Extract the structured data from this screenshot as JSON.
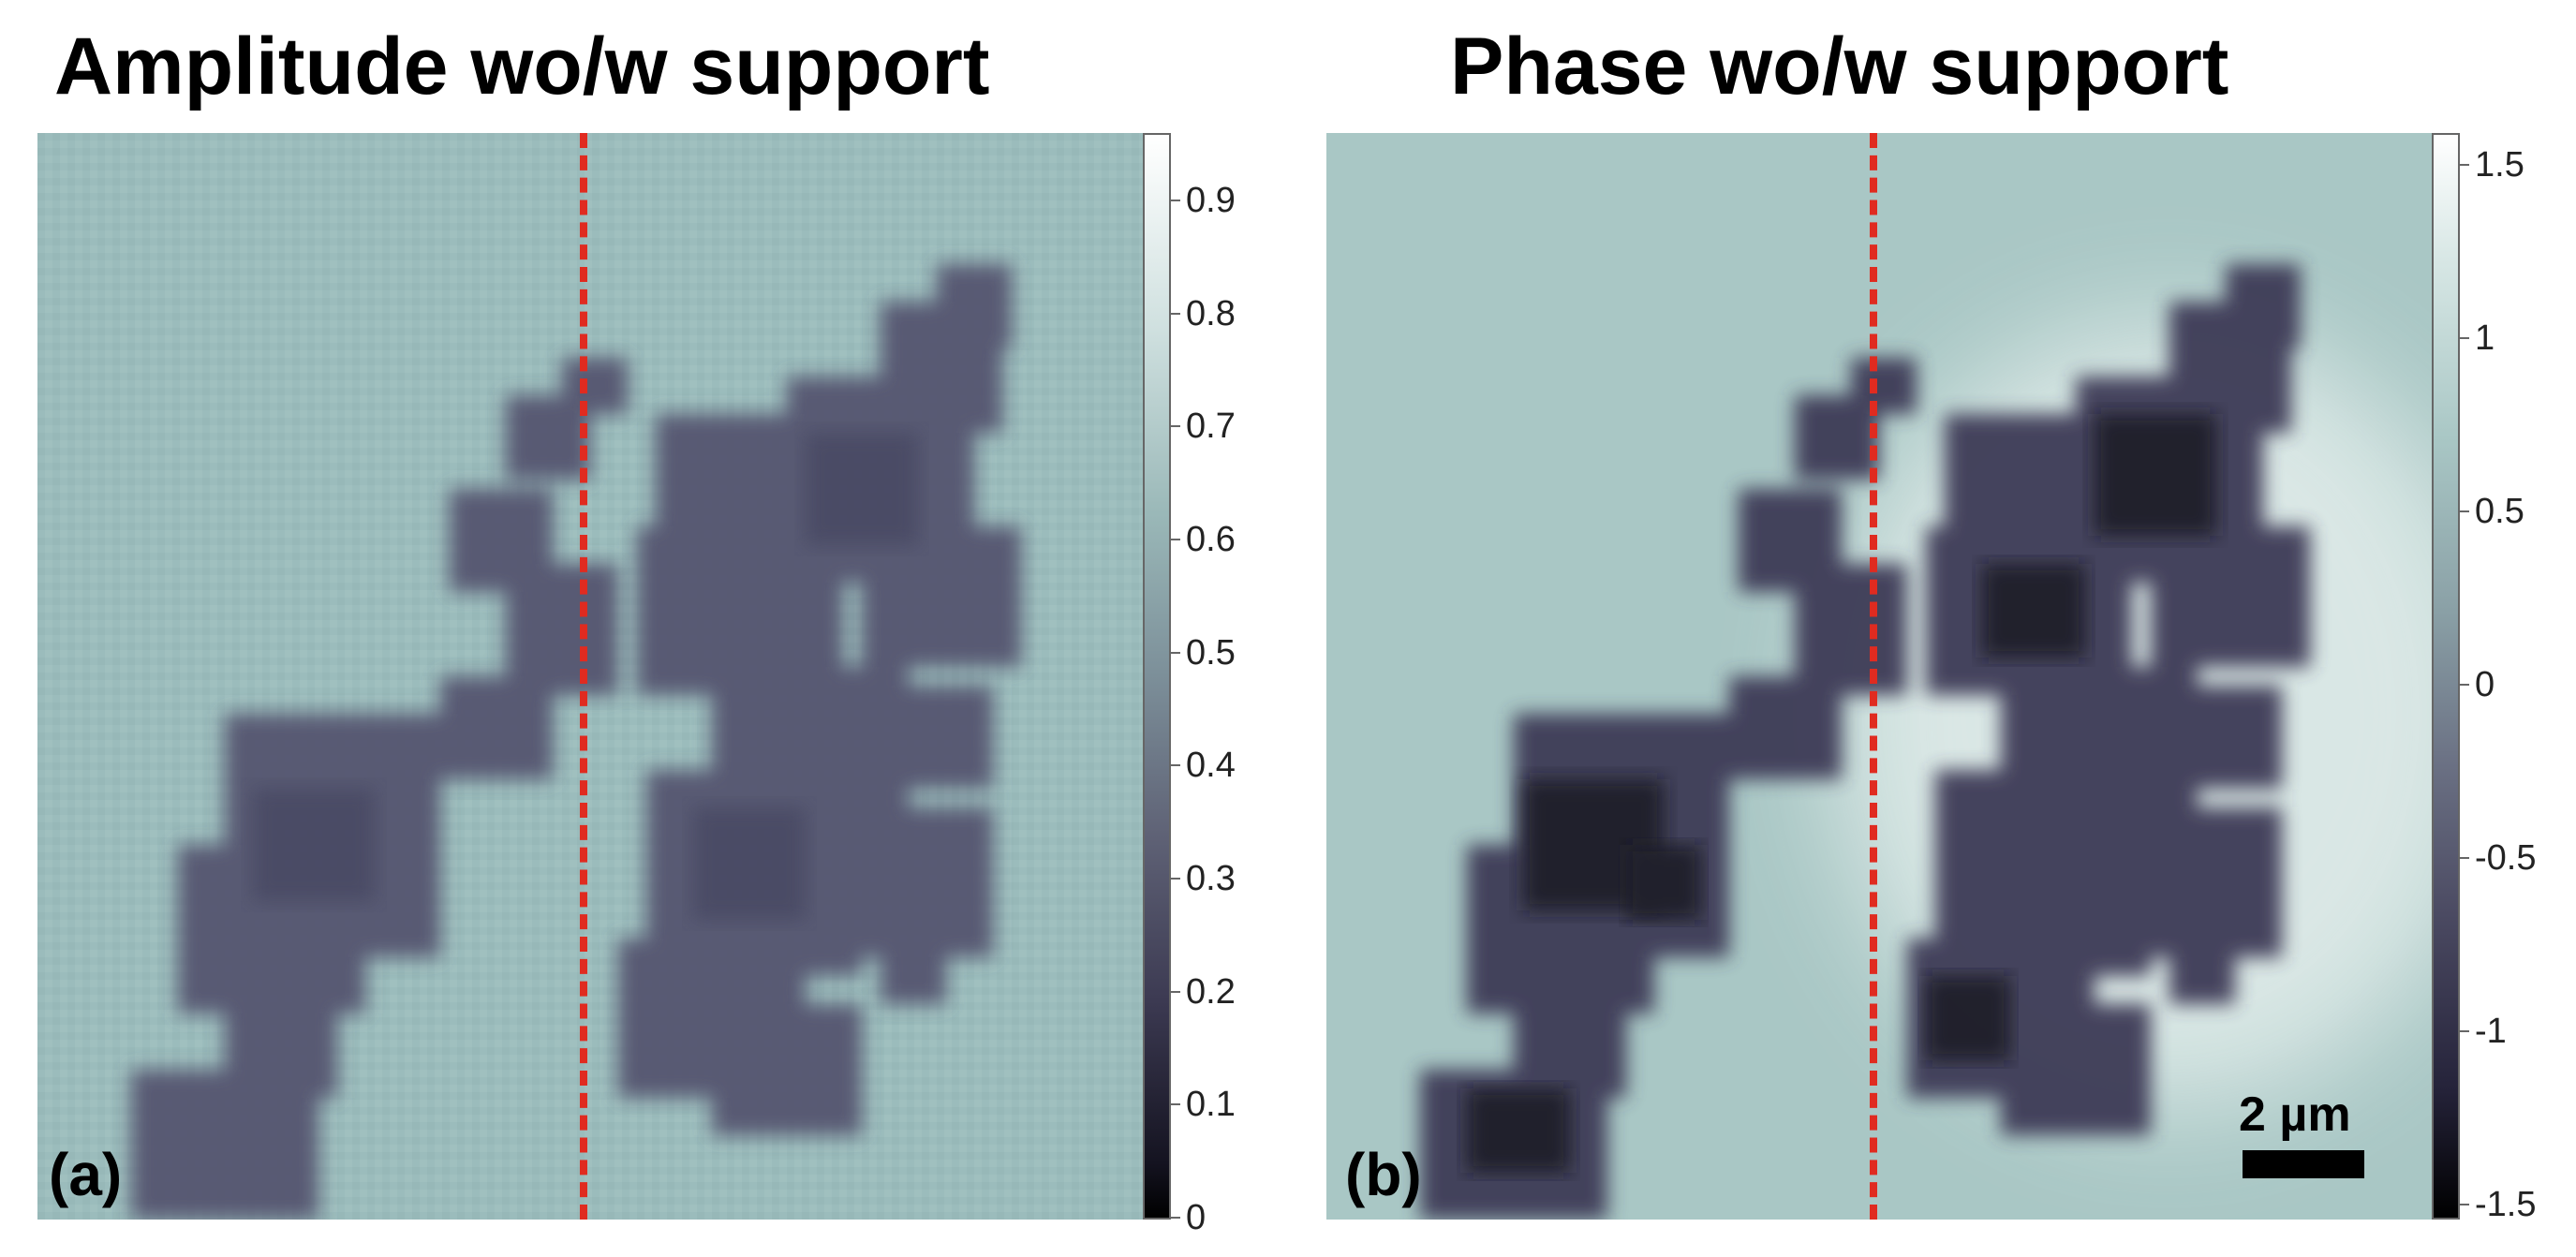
{
  "panel_a": {
    "title": "Amplitude wo/w support",
    "label": "(a)",
    "colorbar_ticks": [
      "0.9",
      "0.8",
      "0.7",
      "0.6",
      "0.5",
      "0.4",
      "0.3",
      "0.2",
      "0.1",
      "0"
    ],
    "colors": {
      "background": "#9bbcbc",
      "particle": "#4f4e6a",
      "divider": "#e02b20"
    }
  },
  "panel_b": {
    "title": "Phase wo/w support",
    "label": "(b)",
    "colorbar_ticks": [
      "1.5",
      "1",
      "0.5",
      "0",
      "-0.5",
      "-1",
      "-1.5"
    ],
    "scalebar_label": "2 µm",
    "colors": {
      "background": "#a9c7c5",
      "particle": "#2d2b42",
      "halo": "#e8f2f0",
      "divider": "#e02b20"
    }
  }
}
